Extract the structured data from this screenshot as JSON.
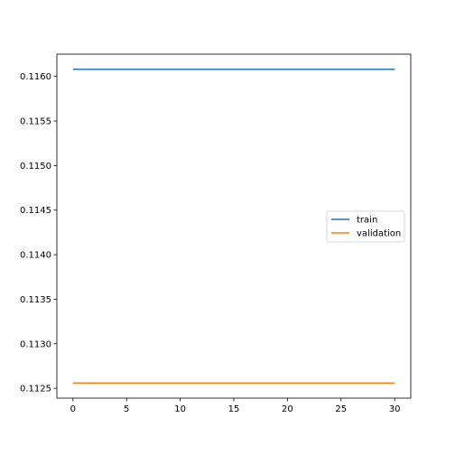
{
  "chart_data": {
    "type": "line",
    "title": "",
    "xlabel": "",
    "ylabel": "",
    "xlim": [
      -1.5,
      31.5
    ],
    "ylim": [
      0.11239,
      0.11625
    ],
    "x_ticks": [
      0,
      5,
      10,
      15,
      20,
      25,
      30
    ],
    "x_tick_labels": [
      "0",
      "5",
      "10",
      "15",
      "20",
      "25",
      "30"
    ],
    "y_ticks": [
      0.1125,
      0.113,
      0.1135,
      0.114,
      0.1145,
      0.115,
      0.1155,
      0.116
    ],
    "y_tick_labels": [
      "0.1125",
      "0.1130",
      "0.1135",
      "0.1140",
      "0.1145",
      "0.1150",
      "0.1155",
      "0.1160"
    ],
    "grid": false,
    "legend_position": "center-right",
    "series": [
      {
        "name": "train",
        "color": "#1f77b4",
        "x": [
          0,
          30
        ],
        "y": [
          0.11608,
          0.11608
        ]
      },
      {
        "name": "validation",
        "color": "#ff7f0e",
        "x": [
          0,
          30
        ],
        "y": [
          0.11256,
          0.11256
        ]
      }
    ]
  }
}
